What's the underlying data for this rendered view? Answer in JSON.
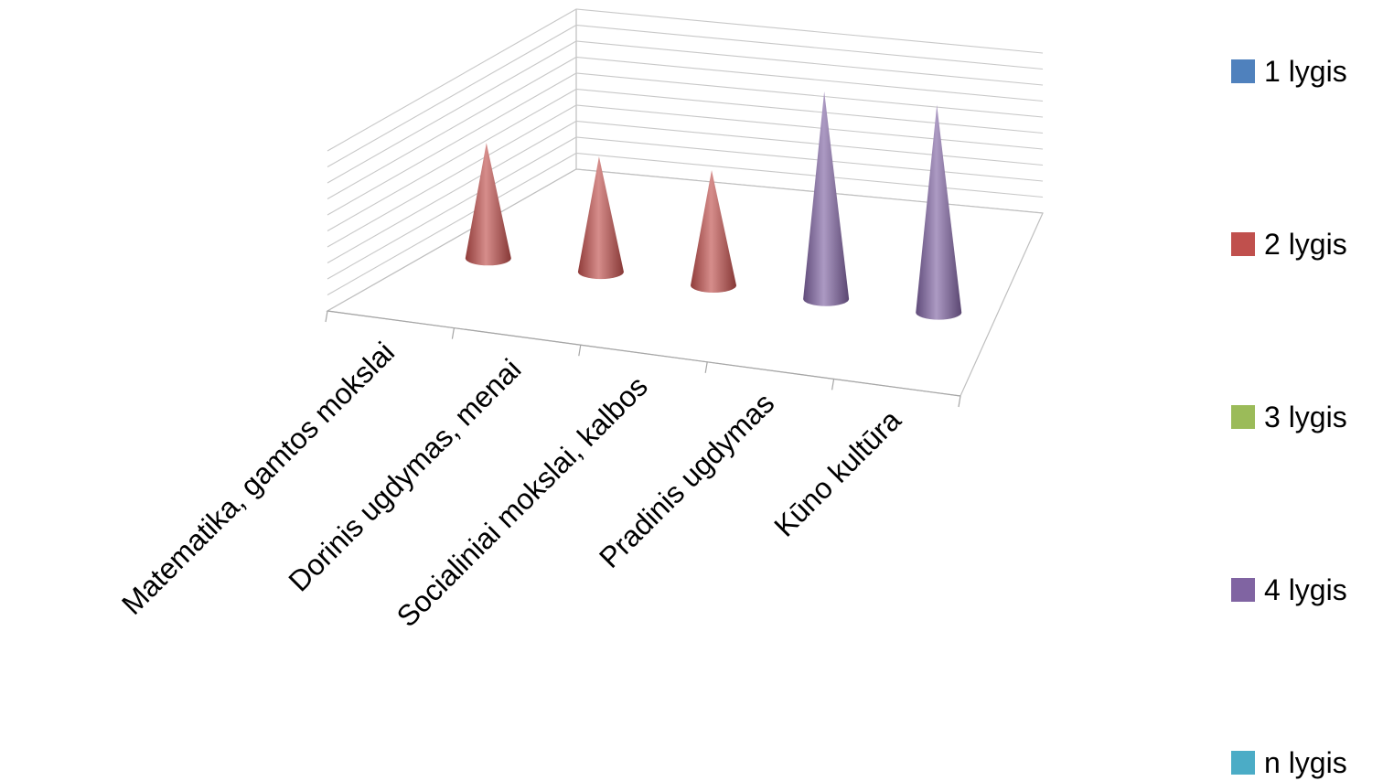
{
  "chart_data": {
    "type": "bar",
    "subtype": "3d-cone",
    "title": "",
    "categories": [
      "Matematika, gamtos mokslai",
      "Dorinis ugdymas, menai",
      "Socialiniai mokslai, kalbos",
      "Pradinis ugdymas",
      "Kūno kultūra"
    ],
    "series": [
      {
        "name": "1 lygis",
        "color": "#4F81BD",
        "values": [
          0,
          0,
          0,
          0,
          0
        ]
      },
      {
        "name": "2 lygis",
        "color": "#C0504D",
        "values": [
          5,
          5,
          5,
          0,
          0
        ]
      },
      {
        "name": "3 lygis",
        "color": "#9BBB59",
        "values": [
          0,
          0,
          0,
          0,
          0
        ]
      },
      {
        "name": "4 lygis",
        "color": "#8064A2",
        "values": [
          0,
          0,
          0,
          9,
          9
        ]
      },
      {
        "name": "n lygis",
        "color": "#4BACC6",
        "values": [
          0,
          0,
          0,
          0,
          0
        ]
      }
    ],
    "ylim": [
      0,
      10
    ],
    "grid": true,
    "legend_position": "right"
  }
}
